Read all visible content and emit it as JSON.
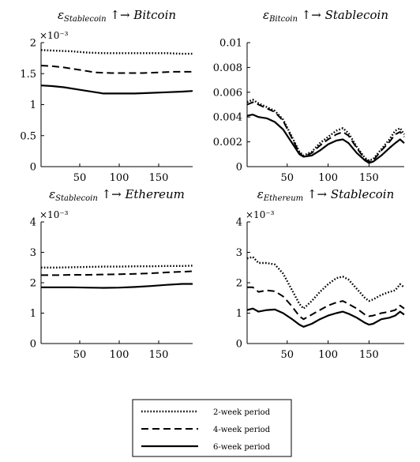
{
  "chart_data": [
    {
      "type": "line",
      "title": "εStablecoin ↑→ Bitcoin",
      "title_parts": {
        "symbol": "ε",
        "sub": "Stablecoin",
        "tail": " ↑→ ",
        "target": "Bitcoin"
      },
      "xlabel": "",
      "ylabel": "",
      "xlim": [
        1,
        193
      ],
      "ylim": [
        0,
        2
      ],
      "xticks": [
        50,
        100,
        150
      ],
      "yticks": [
        0,
        0.5,
        1,
        1.5,
        2
      ],
      "ytick_labels": [
        "0",
        "0.5",
        "1",
        "1.5",
        "2"
      ],
      "scale_label": "×10⁻³",
      "grid": false,
      "series": [
        {
          "name": "2-week period",
          "style": "dotted",
          "points": [
            [
              1,
              1.88
            ],
            [
              20,
              1.87
            ],
            [
              40,
              1.86
            ],
            [
              60,
              1.84
            ],
            [
              80,
              1.83
            ],
            [
              100,
              1.83
            ],
            [
              120,
              1.83
            ],
            [
              140,
              1.83
            ],
            [
              160,
              1.83
            ],
            [
              180,
              1.82
            ],
            [
              193,
              1.82
            ]
          ]
        },
        {
          "name": "4-week period",
          "style": "dashed",
          "points": [
            [
              1,
              1.63
            ],
            [
              15,
              1.62
            ],
            [
              30,
              1.6
            ],
            [
              50,
              1.56
            ],
            [
              70,
              1.52
            ],
            [
              90,
              1.51
            ],
            [
              110,
              1.51
            ],
            [
              130,
              1.51
            ],
            [
              150,
              1.52
            ],
            [
              170,
              1.53
            ],
            [
              193,
              1.53
            ]
          ]
        },
        {
          "name": "6-week period",
          "style": "solid",
          "points": [
            [
              1,
              1.31
            ],
            [
              15,
              1.3
            ],
            [
              30,
              1.28
            ],
            [
              50,
              1.24
            ],
            [
              70,
              1.2
            ],
            [
              80,
              1.18
            ],
            [
              100,
              1.18
            ],
            [
              120,
              1.18
            ],
            [
              140,
              1.19
            ],
            [
              160,
              1.2
            ],
            [
              180,
              1.21
            ],
            [
              193,
              1.22
            ]
          ]
        }
      ]
    },
    {
      "type": "line",
      "title": "εBitcoin ↑→ Stablecoin",
      "title_parts": {
        "symbol": "ε",
        "sub": "Bitcoin",
        "tail": " ↑→ ",
        "target": "Stablecoin"
      },
      "xlabel": "",
      "ylabel": "",
      "xlim": [
        1,
        193
      ],
      "ylim": [
        0,
        0.01
      ],
      "xticks": [
        50,
        100,
        150
      ],
      "yticks": [
        0,
        0.002,
        0.004,
        0.006,
        0.008,
        0.01
      ],
      "ytick_labels": [
        "0",
        "0.002",
        "0.004",
        "0.006",
        "0.008",
        "0.01"
      ],
      "scale_label": "",
      "grid": false,
      "series": [
        {
          "name": "2-week period",
          "style": "dotted",
          "points": [
            [
              1,
              0.0052
            ],
            [
              8,
              0.0054
            ],
            [
              15,
              0.0051
            ],
            [
              25,
              0.0048
            ],
            [
              35,
              0.0045
            ],
            [
              45,
              0.0038
            ],
            [
              55,
              0.0025
            ],
            [
              65,
              0.0012
            ],
            [
              70,
              0.0009
            ],
            [
              80,
              0.0012
            ],
            [
              90,
              0.0019
            ],
            [
              100,
              0.0024
            ],
            [
              110,
              0.0029
            ],
            [
              118,
              0.0031
            ],
            [
              125,
              0.0027
            ],
            [
              135,
              0.0016
            ],
            [
              145,
              0.0007
            ],
            [
              150,
              0.0005
            ],
            [
              155,
              0.0006
            ],
            [
              165,
              0.0014
            ],
            [
              175,
              0.0022
            ],
            [
              182,
              0.0029
            ],
            [
              188,
              0.0031
            ],
            [
              193,
              0.0026
            ]
          ]
        },
        {
          "name": "4-week period",
          "style": "dashed",
          "points": [
            [
              1,
              0.005
            ],
            [
              8,
              0.0052
            ],
            [
              15,
              0.005
            ],
            [
              25,
              0.0047
            ],
            [
              35,
              0.0044
            ],
            [
              45,
              0.0037
            ],
            [
              55,
              0.0024
            ],
            [
              65,
              0.0011
            ],
            [
              70,
              0.0008
            ],
            [
              80,
              0.0011
            ],
            [
              90,
              0.0017
            ],
            [
              100,
              0.0022
            ],
            [
              110,
              0.0026
            ],
            [
              118,
              0.0028
            ],
            [
              125,
              0.0025
            ],
            [
              135,
              0.0015
            ],
            [
              145,
              0.0006
            ],
            [
              150,
              0.0004
            ],
            [
              155,
              0.0005
            ],
            [
              165,
              0.0013
            ],
            [
              175,
              0.002
            ],
            [
              182,
              0.0026
            ],
            [
              188,
              0.0028
            ],
            [
              193,
              0.0024
            ]
          ]
        },
        {
          "name": "6-week period",
          "style": "solid",
          "points": [
            [
              1,
              0.0041
            ],
            [
              8,
              0.0042
            ],
            [
              15,
              0.004
            ],
            [
              25,
              0.0039
            ],
            [
              35,
              0.0036
            ],
            [
              45,
              0.003
            ],
            [
              55,
              0.002
            ],
            [
              65,
              0.001
            ],
            [
              70,
              0.0008
            ],
            [
              80,
              0.0009
            ],
            [
              90,
              0.0013
            ],
            [
              100,
              0.0018
            ],
            [
              110,
              0.0021
            ],
            [
              118,
              0.0022
            ],
            [
              125,
              0.0019
            ],
            [
              135,
              0.0011
            ],
            [
              145,
              0.0005
            ],
            [
              150,
              0.0003
            ],
            [
              155,
              0.0004
            ],
            [
              165,
              0.0009
            ],
            [
              175,
              0.0015
            ],
            [
              182,
              0.0019
            ],
            [
              188,
              0.0022
            ],
            [
              193,
              0.0019
            ]
          ]
        }
      ]
    },
    {
      "type": "line",
      "title": "εStablecoin ↑→ Ethereum",
      "title_parts": {
        "symbol": "ε",
        "sub": "Stablecoin",
        "tail": " ↑→ ",
        "target": "Ethereum"
      },
      "xlabel": "",
      "ylabel": "",
      "xlim": [
        1,
        193
      ],
      "ylim": [
        0,
        4
      ],
      "xticks": [
        50,
        100,
        150
      ],
      "yticks": [
        0,
        1,
        2,
        3,
        4
      ],
      "ytick_labels": [
        "0",
        "1",
        "2",
        "3",
        "4"
      ],
      "scale_label": "×10⁻³",
      "grid": false,
      "series": [
        {
          "name": "2-week period",
          "style": "dotted",
          "points": [
            [
              1,
              2.5
            ],
            [
              20,
              2.5
            ],
            [
              40,
              2.51
            ],
            [
              60,
              2.52
            ],
            [
              80,
              2.53
            ],
            [
              100,
              2.53
            ],
            [
              120,
              2.54
            ],
            [
              140,
              2.54
            ],
            [
              160,
              2.55
            ],
            [
              180,
              2.55
            ],
            [
              193,
              2.56
            ]
          ]
        },
        {
          "name": "4-week period",
          "style": "dashed",
          "points": [
            [
              1,
              2.25
            ],
            [
              20,
              2.25
            ],
            [
              40,
              2.26
            ],
            [
              60,
              2.26
            ],
            [
              80,
              2.27
            ],
            [
              100,
              2.28
            ],
            [
              120,
              2.29
            ],
            [
              140,
              2.31
            ],
            [
              160,
              2.34
            ],
            [
              180,
              2.36
            ],
            [
              193,
              2.38
            ]
          ]
        },
        {
          "name": "6-week period",
          "style": "solid",
          "points": [
            [
              1,
              1.85
            ],
            [
              20,
              1.85
            ],
            [
              40,
              1.85
            ],
            [
              60,
              1.84
            ],
            [
              80,
              1.83
            ],
            [
              100,
              1.84
            ],
            [
              120,
              1.86
            ],
            [
              140,
              1.89
            ],
            [
              160,
              1.93
            ],
            [
              180,
              1.96
            ],
            [
              193,
              1.96
            ]
          ]
        }
      ]
    },
    {
      "type": "line",
      "title": "εEthereum ↑→ Stablecoin",
      "title_parts": {
        "symbol": "ε",
        "sub": "Ethereum",
        "tail": " ↑→ ",
        "target": "Stablecoin"
      },
      "xlabel": "",
      "ylabel": "",
      "xlim": [
        1,
        193
      ],
      "ylim": [
        0,
        4
      ],
      "xticks": [
        50,
        100,
        150
      ],
      "yticks": [
        0,
        1,
        2,
        3,
        4
      ],
      "ytick_labels": [
        "0",
        "1",
        "2",
        "3",
        "4"
      ],
      "scale_label": "×10⁻³",
      "grid": false,
      "series": [
        {
          "name": "2-week period",
          "style": "dotted",
          "points": [
            [
              1,
              2.8
            ],
            [
              8,
              2.85
            ],
            [
              15,
              2.65
            ],
            [
              25,
              2.65
            ],
            [
              35,
              2.6
            ],
            [
              45,
              2.3
            ],
            [
              55,
              1.8
            ],
            [
              65,
              1.3
            ],
            [
              70,
              1.15
            ],
            [
              80,
              1.4
            ],
            [
              90,
              1.7
            ],
            [
              100,
              1.95
            ],
            [
              110,
              2.15
            ],
            [
              118,
              2.2
            ],
            [
              125,
              2.1
            ],
            [
              135,
              1.8
            ],
            [
              145,
              1.5
            ],
            [
              150,
              1.4
            ],
            [
              155,
              1.45
            ],
            [
              165,
              1.6
            ],
            [
              175,
              1.7
            ],
            [
              182,
              1.75
            ],
            [
              188,
              1.95
            ],
            [
              193,
              1.85
            ]
          ]
        },
        {
          "name": "4-week period",
          "style": "dashed",
          "points": [
            [
              1,
              1.85
            ],
            [
              8,
              1.85
            ],
            [
              15,
              1.7
            ],
            [
              25,
              1.75
            ],
            [
              35,
              1.72
            ],
            [
              45,
              1.55
            ],
            [
              55,
              1.25
            ],
            [
              65,
              0.9
            ],
            [
              70,
              0.8
            ],
            [
              80,
              0.95
            ],
            [
              90,
              1.1
            ],
            [
              100,
              1.25
            ],
            [
              110,
              1.35
            ],
            [
              118,
              1.4
            ],
            [
              125,
              1.3
            ],
            [
              135,
              1.15
            ],
            [
              145,
              0.95
            ],
            [
              150,
              0.9
            ],
            [
              155,
              0.92
            ],
            [
              165,
              1.0
            ],
            [
              175,
              1.05
            ],
            [
              182,
              1.1
            ],
            [
              188,
              1.25
            ],
            [
              193,
              1.15
            ]
          ]
        },
        {
          "name": "6-week period",
          "style": "solid",
          "points": [
            [
              1,
              1.1
            ],
            [
              8,
              1.15
            ],
            [
              15,
              1.05
            ],
            [
              25,
              1.1
            ],
            [
              35,
              1.12
            ],
            [
              45,
              1.0
            ],
            [
              55,
              0.82
            ],
            [
              65,
              0.62
            ],
            [
              70,
              0.55
            ],
            [
              80,
              0.65
            ],
            [
              90,
              0.8
            ],
            [
              100,
              0.92
            ],
            [
              110,
              1.0
            ],
            [
              118,
              1.05
            ],
            [
              125,
              0.98
            ],
            [
              135,
              0.85
            ],
            [
              145,
              0.68
            ],
            [
              150,
              0.62
            ],
            [
              155,
              0.65
            ],
            [
              165,
              0.8
            ],
            [
              175,
              0.85
            ],
            [
              182,
              0.92
            ],
            [
              188,
              1.05
            ],
            [
              193,
              0.95
            ]
          ]
        }
      ]
    }
  ],
  "legend": {
    "placement": "bottom-center",
    "entries": [
      {
        "label": "2-week period",
        "style": "dotted"
      },
      {
        "label": "4-week period",
        "style": "dashed"
      },
      {
        "label": "6-week period",
        "style": "solid"
      }
    ]
  }
}
